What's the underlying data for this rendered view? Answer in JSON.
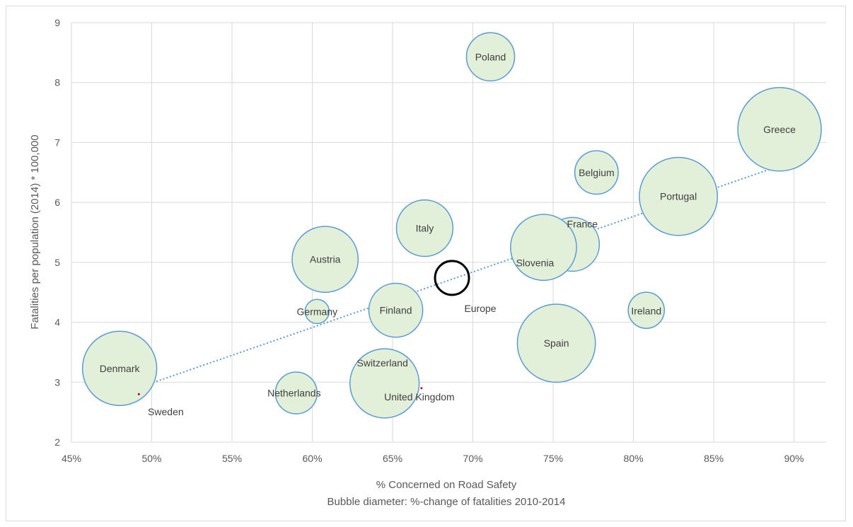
{
  "chart_data": {
    "type": "scatter",
    "subtype": "bubble",
    "xlabel": "% Concerned on Road Safety",
    "subtitle": "Bubble diameter: %-change of fatalities 2010-2014",
    "ylabel": "Fatalities per population (2014) * 100,000",
    "xlim": [
      0.45,
      0.92
    ],
    "ylim": [
      2,
      9
    ],
    "x_ticks": [
      "45%",
      "50%",
      "55%",
      "60%",
      "65%",
      "70%",
      "75%",
      "80%",
      "85%",
      "90%"
    ],
    "y_ticks": [
      "2",
      "3",
      "4",
      "5",
      "6",
      "7",
      "8",
      "9"
    ],
    "grid": true,
    "trendline": {
      "style": "dotted",
      "from": [
        0.48,
        2.8
      ],
      "to": [
        0.89,
        6.6
      ],
      "color": "#5b9bd5"
    },
    "bubble_fill": "#e2efd9",
    "bubble_stroke": "#5b9bd5",
    "highlight_stroke": "#000000",
    "points": [
      {
        "name": "Poland",
        "x": 0.711,
        "y": 8.43,
        "size": 0.16
      },
      {
        "name": "Greece",
        "x": 0.891,
        "y": 7.22,
        "size": 0.48
      },
      {
        "name": "Belgium",
        "x": 0.777,
        "y": 6.5,
        "size": 0.13
      },
      {
        "name": "Portugal",
        "x": 0.828,
        "y": 6.1,
        "size": 0.42
      },
      {
        "name": "France",
        "x": 0.762,
        "y": 5.3,
        "size": 0.2
      },
      {
        "name": "Italy",
        "x": 0.67,
        "y": 5.57,
        "size": 0.22
      },
      {
        "name": "Slovenia",
        "x": 0.744,
        "y": 5.25,
        "size": 0.3
      },
      {
        "name": "Austria",
        "x": 0.608,
        "y": 5.05,
        "size": 0.3
      },
      {
        "name": "Europe",
        "x": 0.687,
        "y": 4.74,
        "size": 0.22,
        "highlight": true
      },
      {
        "name": "Germany",
        "x": 0.603,
        "y": 4.18,
        "size": 0.04
      },
      {
        "name": "Finland",
        "x": 0.652,
        "y": 4.2,
        "size": 0.2
      },
      {
        "name": "Ireland",
        "x": 0.808,
        "y": 4.2,
        "size": 0.09
      },
      {
        "name": "Spain",
        "x": 0.752,
        "y": 3.65,
        "size": 0.42
      },
      {
        "name": "Denmark",
        "x": 0.48,
        "y": 3.23,
        "size": 0.38
      },
      {
        "name": "Switzerland",
        "x": 0.645,
        "y": 2.98,
        "size": 0.33
      },
      {
        "name": "Netherlands",
        "x": 0.59,
        "y": 2.82,
        "size": 0.12
      },
      {
        "name": "United Kingdom",
        "x": 0.668,
        "y": 2.9,
        "size": 0.005
      },
      {
        "name": "Sweden",
        "x": 0.492,
        "y": 2.8,
        "size": 0.003
      }
    ]
  }
}
